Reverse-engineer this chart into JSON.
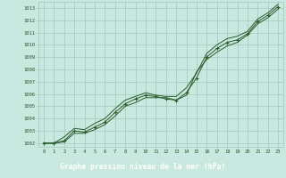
{
  "title": "Graphe pression niveau de la mer (hPa)",
  "bg_color": "#c8e8e0",
  "grid_color": "#a0c8bc",
  "line_color": "#2a5c2a",
  "marker_color": "#2a5c2a",
  "text_color": "#2a5c2a",
  "bottom_bar_color": "#2a5c2a",
  "bottom_text_color": "#ffffff",
  "xlim": [
    -0.5,
    23.5
  ],
  "ylim": [
    1001.7,
    1013.5
  ],
  "yticks": [
    1002,
    1003,
    1004,
    1005,
    1006,
    1007,
    1008,
    1009,
    1010,
    1011,
    1012,
    1013
  ],
  "xticks": [
    0,
    1,
    2,
    3,
    4,
    5,
    6,
    7,
    8,
    9,
    10,
    11,
    12,
    13,
    14,
    15,
    16,
    17,
    18,
    19,
    20,
    21,
    22,
    23
  ],
  "series1": [
    1002.0,
    1002.0,
    1002.1,
    1002.8,
    1002.8,
    1003.1,
    1003.5,
    1004.2,
    1005.0,
    1005.3,
    1005.7,
    1005.7,
    1005.7,
    1005.5,
    1005.9,
    1007.8,
    1008.8,
    1009.4,
    1009.9,
    1010.2,
    1010.8,
    1011.7,
    1012.2,
    1012.9
  ],
  "series2": [
    1002.0,
    1002.0,
    1002.2,
    1003.0,
    1002.9,
    1003.3,
    1003.7,
    1004.5,
    1005.2,
    1005.6,
    1005.9,
    1005.8,
    1005.6,
    1005.5,
    1006.1,
    1007.3,
    1009.0,
    1009.7,
    1010.2,
    1010.4,
    1010.9,
    1011.9,
    1012.4,
    1013.1
  ],
  "series3": [
    1002.0,
    1002.0,
    1002.5,
    1003.2,
    1003.1,
    1003.6,
    1004.0,
    1004.8,
    1005.5,
    1005.8,
    1006.1,
    1005.9,
    1005.8,
    1005.8,
    1006.5,
    1007.7,
    1009.3,
    1010.0,
    1010.5,
    1010.7,
    1011.1,
    1012.1,
    1012.6,
    1013.3
  ]
}
